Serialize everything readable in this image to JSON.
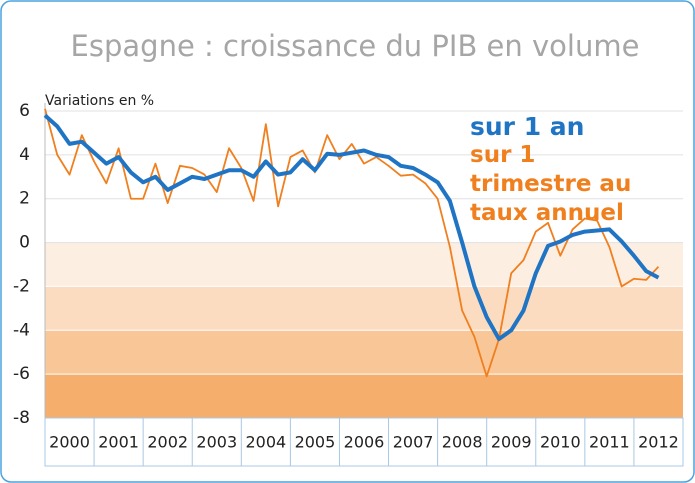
{
  "chart_data": {
    "type": "line",
    "title": "Espagne : croissance du PIB en volume",
    "ylabel": "Variations en %",
    "categories": [
      "2000",
      "2001",
      "2002",
      "2003",
      "2004",
      "2005",
      "2006",
      "2007",
      "2008",
      "2009",
      "2010",
      "2011",
      "2012"
    ],
    "x": [
      2000,
      2000.25,
      2000.5,
      2000.75,
      2001,
      2001.25,
      2001.5,
      2001.75,
      2002,
      2002.25,
      2002.5,
      2002.75,
      2003,
      2003.25,
      2003.5,
      2003.75,
      2004,
      2004.25,
      2004.5,
      2004.75,
      2005,
      2005.25,
      2005.5,
      2005.75,
      2006,
      2006.25,
      2006.5,
      2006.75,
      2007,
      2007.25,
      2007.5,
      2007.75,
      2008,
      2008.25,
      2008.5,
      2008.75,
      2009,
      2009.25,
      2009.5,
      2009.75,
      2010,
      2010.25,
      2010.5,
      2010.75,
      2011,
      2011.25,
      2011.5,
      2011.75,
      2012,
      2012.25,
      2012.5
    ],
    "xlim": [
      2000,
      2013
    ],
    "ylim": [
      -8,
      6
    ],
    "yticks": [
      -8,
      -6,
      -4,
      -2,
      0,
      2,
      4,
      6
    ],
    "series": [
      {
        "name": "sur 1 an",
        "color": "#1f74c4",
        "width": 4,
        "values": [
          5.8,
          5.3,
          4.5,
          4.6,
          4.1,
          3.6,
          3.9,
          3.2,
          2.75,
          3.0,
          2.4,
          2.7,
          3.0,
          2.9,
          3.1,
          3.3,
          3.3,
          3.0,
          3.7,
          3.1,
          3.2,
          3.8,
          3.3,
          4.05,
          4.0,
          4.1,
          4.2,
          4.0,
          3.9,
          3.5,
          3.4,
          3.1,
          2.75,
          1.9,
          0.0,
          -2.0,
          -3.4,
          -4.4,
          -4.0,
          -3.1,
          -1.4,
          -0.15,
          0.05,
          0.35,
          0.5,
          0.55,
          0.6,
          0.05,
          -0.6,
          -1.3,
          -1.6
        ]
      },
      {
        "name": "sur 1 trimestre au taux annuel",
        "color": "#f07f1e",
        "width": 1.8,
        "values": [
          6.1,
          4.0,
          3.1,
          4.9,
          3.7,
          2.7,
          4.3,
          2.0,
          2.0,
          3.6,
          1.8,
          3.5,
          3.4,
          3.1,
          2.3,
          4.3,
          3.4,
          1.9,
          5.4,
          1.65,
          3.9,
          4.2,
          3.2,
          4.9,
          3.8,
          4.5,
          3.6,
          3.9,
          3.5,
          3.05,
          3.1,
          2.7,
          2.0,
          -0.2,
          -3.1,
          -4.3,
          -6.1,
          -4.4,
          -1.4,
          -0.8,
          0.5,
          0.9,
          -0.6,
          0.6,
          1.1,
          1.0,
          -0.2,
          -2.0,
          -1.65,
          -1.7,
          -1.1
        ]
      }
    ]
  }
}
